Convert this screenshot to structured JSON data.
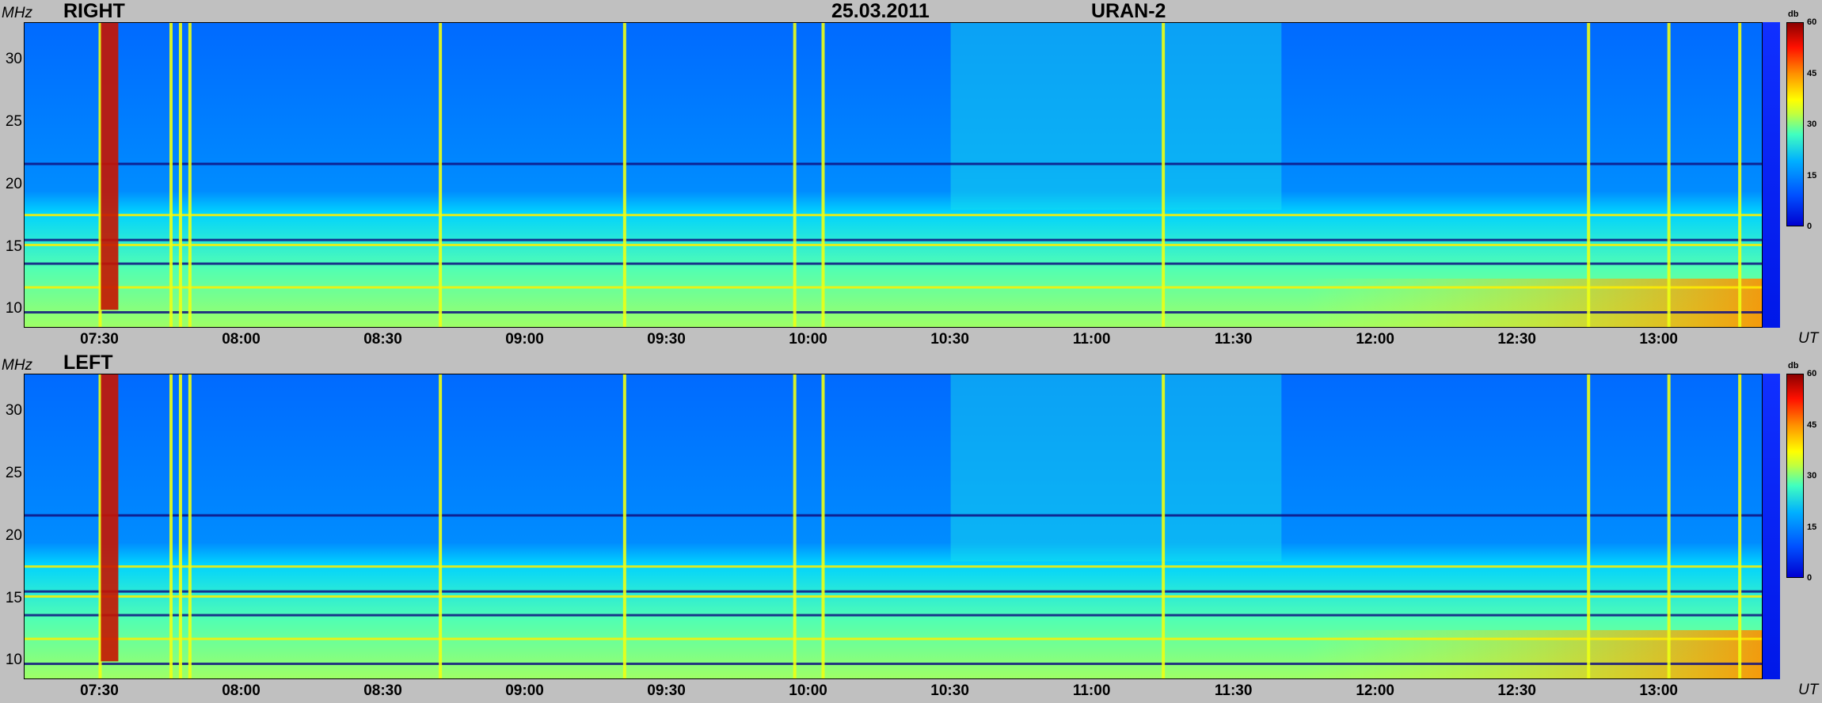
{
  "title": {
    "date": "25.03.2011",
    "instrument": "URAN-2"
  },
  "chart_data": [
    {
      "type": "heatmap",
      "panel": "RIGHT",
      "ylabel": "MHz",
      "xlabel": "UT",
      "colorbar_label": "db",
      "colorbar_ticks": [
        "60",
        "45",
        "30",
        "15",
        "0"
      ],
      "colorbar_range": [
        0,
        60
      ],
      "ylim": [
        8.5,
        33
      ],
      "y_ticks": [
        "30",
        "25",
        "20",
        "15",
        "10"
      ],
      "x_ticks": [
        "07:30",
        "08:00",
        "08:30",
        "09:00",
        "09:30",
        "10:00",
        "10:30",
        "11:00",
        "11:30",
        "12:00",
        "12:30",
        "13:00"
      ],
      "xlim": [
        "07:14",
        "13:22"
      ],
      "bursts_UT": [
        "07:30",
        "07:45",
        "07:47",
        "07:49",
        "08:42",
        "09:21",
        "09:57",
        "10:03",
        "11:15",
        "12:45",
        "13:02",
        "13:17"
      ],
      "strongest_burst": {
        "time": "07:32",
        "freq_range_MHz": [
          10,
          33
        ],
        "db": 55
      },
      "hf_diffuse_emission": {
        "time_range": [
          "10:30",
          "11:40"
        ],
        "freq_range_MHz": [
          18,
          33
        ]
      },
      "interference_lines_MHz": [
        9.8,
        11.8,
        13.7,
        15.2,
        15.6,
        17.6,
        21.7
      ],
      "background_db": 12
    },
    {
      "type": "heatmap",
      "panel": "LEFT",
      "ylabel": "MHz",
      "xlabel": "UT",
      "colorbar_label": "db",
      "colorbar_ticks": [
        "60",
        "45",
        "30",
        "15",
        "0"
      ],
      "colorbar_range": [
        0,
        60
      ],
      "ylim": [
        8.5,
        33
      ],
      "y_ticks": [
        "30",
        "25",
        "20",
        "15",
        "10"
      ],
      "x_ticks": [
        "07:30",
        "08:00",
        "08:30",
        "09:00",
        "09:30",
        "10:00",
        "10:30",
        "11:00",
        "11:30",
        "12:00",
        "12:30",
        "13:00"
      ],
      "xlim": [
        "07:14",
        "13:22"
      ],
      "bursts_UT": [
        "07:30",
        "07:45",
        "07:47",
        "07:49",
        "08:42",
        "09:21",
        "09:57",
        "10:03",
        "11:15",
        "12:45",
        "13:02",
        "13:17"
      ],
      "strongest_burst": {
        "time": "07:32",
        "freq_range_MHz": [
          10,
          33
        ],
        "db": 55
      },
      "hf_diffuse_emission": {
        "time_range": [
          "10:30",
          "11:40"
        ],
        "freq_range_MHz": [
          18,
          33
        ]
      },
      "interference_lines_MHz": [
        9.8,
        11.8,
        13.7,
        15.2,
        15.6,
        17.6,
        21.7
      ],
      "background_db": 12
    }
  ]
}
